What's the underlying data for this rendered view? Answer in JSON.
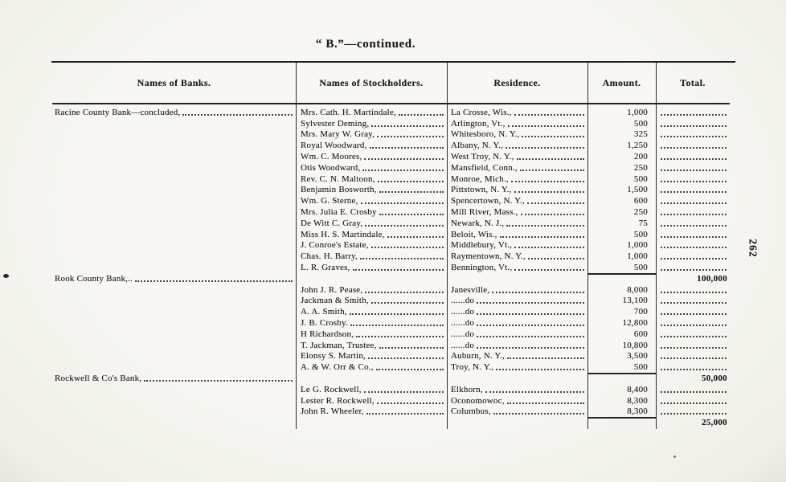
{
  "title": "“ B.”—continued.",
  "page_number": "262",
  "ink_color": "#1c1c1c",
  "paper_color": "#f6f5f0",
  "table": {
    "headers": [
      "Names of Banks.",
      "Names of Stockholders.",
      "Residence.",
      "Amount.",
      "Total."
    ],
    "sections": [
      {
        "bank": "Racine County Bank—concluded,",
        "bank_on_first_row": true,
        "total": "100,000",
        "rows": [
          {
            "stockholder": "Mrs. Cath. H. Martindale,",
            "residence": "La Crosse, Wis.,",
            "amount": "1,000"
          },
          {
            "stockholder": "Sylvester Deming,",
            "residence": "Arlington, Vt.,",
            "amount": "500"
          },
          {
            "stockholder": "Mrs. Mary W. Gray,",
            "residence": "Whitesboro, N. Y.,",
            "amount": "325"
          },
          {
            "stockholder": "Royal Woodward,",
            "residence": "Albany, N. Y.,",
            "amount": "1,250"
          },
          {
            "stockholder": "Wm. C. Moores,",
            "residence": "West Troy, N. Y.,",
            "amount": "200"
          },
          {
            "stockholder": "Otis Woodward,",
            "residence": "Mansfield, Conn.,",
            "amount": "250"
          },
          {
            "stockholder": "Rev. C. N. Maltoon,",
            "residence": "Monroe, Mich.,",
            "amount": "500"
          },
          {
            "stockholder": "Benjamin Bosworth,",
            "residence": "Pittstown, N. Y.,",
            "amount": "1,500"
          },
          {
            "stockholder": "Wm. G. Sterne,",
            "residence": "Spencertown, N. Y.,",
            "amount": "600"
          },
          {
            "stockholder": "Mrs. Julia E. Crosby",
            "residence": "Mill River, Mass.,",
            "amount": "250"
          },
          {
            "stockholder": "De Witt C. Gray,",
            "residence": "Newark, N. J.,",
            "amount": "75"
          },
          {
            "stockholder": "Miss H. S. Martindale,",
            "residence": "Beloit, Wis.,",
            "amount": "500"
          },
          {
            "stockholder": "J. Conroe's Estate,",
            "residence": "Middlebury, Vt.,",
            "amount": "1,000"
          },
          {
            "stockholder": "Chas. H. Barry,",
            "residence": "Raymentown, N. Y.,",
            "amount": "1,000"
          },
          {
            "stockholder": "L. R. Graves,",
            "residence": "Bennington, Vt.,",
            "amount": "500"
          }
        ]
      },
      {
        "bank": "Rook County Bank,..",
        "bank_on_first_row": false,
        "total": "50,000",
        "rows": [
          {
            "stockholder": "John J. R. Pease,",
            "residence": "Janesville,",
            "amount": "8,000"
          },
          {
            "stockholder": "Jackman & Smith,",
            "residence": "......do",
            "amount": "13,100"
          },
          {
            "stockholder": "A. A. Smith,",
            "residence": "......do",
            "amount": "700"
          },
          {
            "stockholder": "J. B. Crosby.",
            "residence": "......do",
            "amount": "12,800"
          },
          {
            "stockholder": "H Richardson,",
            "residence": "......do",
            "amount": "600"
          },
          {
            "stockholder": "T. Jackman, Trustee,",
            "residence": "......do",
            "amount": "10,800"
          },
          {
            "stockholder": "Elonsy S. Martin,",
            "residence": "Auburn, N. Y.,",
            "amount": "3,500"
          },
          {
            "stockholder": "A. & W. Orr & Co.,",
            "residence": "Troy, N. Y.,",
            "amount": "500"
          }
        ]
      },
      {
        "bank": "Rockwell & Co's Bank,",
        "bank_on_first_row": false,
        "total": "25,000",
        "rows": [
          {
            "stockholder": "Le G. Rockwell,",
            "residence": "Elkhorn,",
            "amount": "8,400"
          },
          {
            "stockholder": "Lester R. Rockwell,",
            "residence": "Oconomowoc,",
            "amount": "8,300"
          },
          {
            "stockholder": "John R. Wheeler,",
            "residence": "Columbus,",
            "amount": "8,300"
          }
        ]
      }
    ]
  }
}
